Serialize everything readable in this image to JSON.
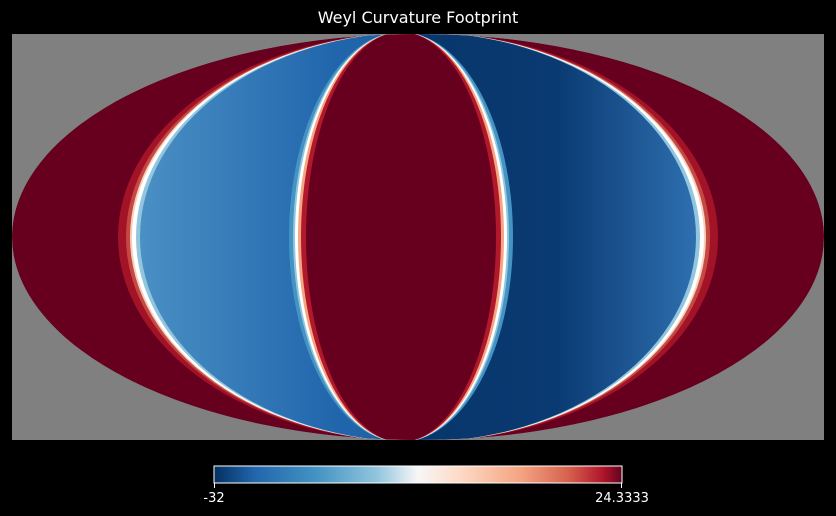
{
  "chart_data": {
    "type": "heatmap",
    "projection": "mollweide",
    "title": "Weyl Curvature Footprint",
    "colormap": "RdBu_r",
    "colorbar": {
      "min_label": "-32",
      "max_label": "24.3333",
      "min": -32,
      "max": 24.3333,
      "orientation": "horizontal",
      "placement": "bottom"
    },
    "colors": {
      "background": "#000000",
      "unseen_fill": "#808080",
      "low": "#053061",
      "mid": "#f7f7f7",
      "high": "#67001f"
    },
    "pattern": {
      "description_free_structure": "lobes",
      "regions": [
        {
          "longitude_range_deg": [
            -180,
            -150
          ],
          "value": 24.3333
        },
        {
          "longitude_range_deg": [
            -150,
            -60
          ],
          "value": -26
        },
        {
          "longitude_range_deg": [
            -60,
            45
          ],
          "value": 24.3333
        },
        {
          "longitude_range_deg": [
            45,
            150
          ],
          "value": -30
        },
        {
          "longitude_range_deg": [
            150,
            180
          ],
          "value": 24.3333
        }
      ],
      "boundary_longitudes_deg": [
        -150,
        -60,
        45,
        150
      ]
    }
  }
}
